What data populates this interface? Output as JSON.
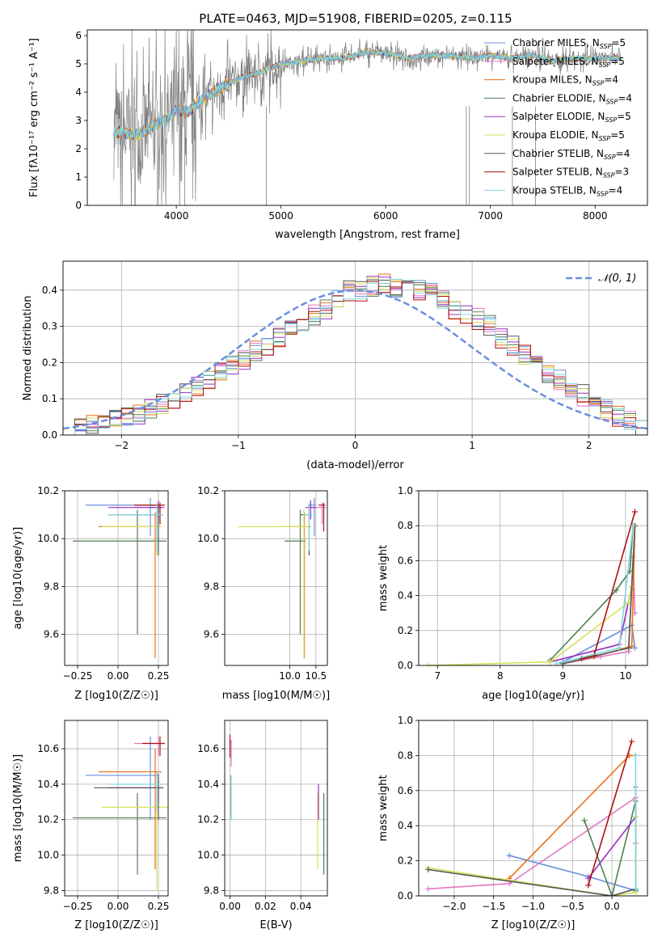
{
  "figure": {
    "title": "PLATE=0463, MJD=51908, FIBERID=0205, z=0.115",
    "colors": {
      "chabrier_miles": "#6a8fdc",
      "salpeter_miles": "#e377c2",
      "kroupa_miles": "#ee6e1a",
      "chabrier_elodie": "#4f7f4f",
      "salpeter_elodie": "#9b30c0",
      "kroupa_elodie": "#d6e05a",
      "chabrier_stelib": "#555555",
      "salpeter_stelib": "#b01010",
      "kroupa_stelib": "#7fd8de",
      "data": "#808080"
    }
  },
  "chart_data": [
    {
      "id": "spectrum",
      "type": "line",
      "xlabel": "wavelength [Angstrom, rest frame]",
      "ylabel": "Flux [fλ10⁻¹⁷ erg cm⁻² s⁻¹ A⁻¹]",
      "xlim": [
        3150,
        8500
      ],
      "ylim": [
        0,
        6.2
      ],
      "xticks": [
        "4000",
        "5000",
        "6000",
        "7000",
        "8000"
      ],
      "yticks": [
        "0",
        "1",
        "2",
        "3",
        "4",
        "5",
        "6"
      ],
      "legend": [
        {
          "label": "Chabrier MILES, N",
          "sub": "SSP",
          "suffix": "=5",
          "color": "chabrier_miles"
        },
        {
          "label": "Salpeter MILES, N",
          "sub": "SSP",
          "suffix": "=5",
          "color": "salpeter_miles"
        },
        {
          "label": "Kroupa MILES, N",
          "sub": "SSP",
          "suffix": "=4",
          "color": "kroupa_miles"
        },
        {
          "label": "Chabrier ELODIE, N",
          "sub": "SSP",
          "suffix": "=4",
          "color": "chabrier_elodie"
        },
        {
          "label": "Salpeter ELODIE, N",
          "sub": "SSP",
          "suffix": "=5",
          "color": "salpeter_elodie"
        },
        {
          "label": "Kroupa ELODIE, N",
          "sub": "SSP",
          "suffix": "=5",
          "color": "kroupa_elodie"
        },
        {
          "label": "Chabrier STELIB, N",
          "sub": "SSP",
          "suffix": "=4",
          "color": "chabrier_stelib"
        },
        {
          "label": "Salpeter STELIB, N",
          "sub": "SSP",
          "suffix": "=3",
          "color": "salpeter_stelib"
        },
        {
          "label": "Kroupa STELIB, N",
          "sub": "SSP",
          "suffix": "=4",
          "color": "kroupa_stelib"
        }
      ],
      "legend_loc": "upper right",
      "continuum": {
        "x": [
          3400,
          3600,
          3700,
          3800,
          3900,
          4000,
          4100,
          4200,
          4400,
          4600,
          4800,
          5000,
          5200,
          5400,
          5600,
          5800,
          6000,
          6200,
          6400,
          6600,
          6800,
          7000,
          7200,
          7400,
          7600,
          7800,
          8000,
          8250
        ],
        "y": [
          2.6,
          2.5,
          2.6,
          2.9,
          3.0,
          3.4,
          3.3,
          3.6,
          4.1,
          4.5,
          4.7,
          5.0,
          5.1,
          5.2,
          5.2,
          5.4,
          5.4,
          5.2,
          5.3,
          5.3,
          5.2,
          5.3,
          5.2,
          5.3,
          5.1,
          5.2,
          5.2,
          5.2
        ]
      }
    },
    {
      "id": "residuals",
      "type": "step",
      "xlabel": "(data-model)/error",
      "ylabel": "Normed distribution",
      "xlim": [
        -2.5,
        2.5
      ],
      "ylim": [
        0,
        0.48
      ],
      "xticks": [
        "-2",
        "-1",
        "0",
        "1",
        "2"
      ],
      "yticks": [
        "0.0",
        "0.1",
        "0.2",
        "0.3",
        "0.4"
      ],
      "grid": true,
      "legend": {
        "label": "𝒩(0, 1)",
        "loc": "upper right"
      },
      "bin_width": 0.1,
      "bin_start": -2.5,
      "profile": [
        0.02,
        0.024,
        0.03,
        0.035,
        0.045,
        0.055,
        0.06,
        0.07,
        0.085,
        0.1,
        0.115,
        0.13,
        0.15,
        0.17,
        0.19,
        0.21,
        0.23,
        0.25,
        0.27,
        0.3,
        0.31,
        0.33,
        0.35,
        0.37,
        0.4,
        0.4,
        0.41,
        0.42,
        0.41,
        0.4,
        0.4,
        0.39,
        0.37,
        0.35,
        0.33,
        0.32,
        0.3,
        0.27,
        0.25,
        0.22,
        0.19,
        0.17,
        0.15,
        0.13,
        0.11,
        0.09,
        0.07,
        0.05,
        0.035,
        0.025
      ]
    },
    {
      "id": "age_vs_Z",
      "type": "errorbar",
      "xlabel": "Z [log10(Z/Z☉)]",
      "ylabel": "age  [log10(age/yr)]",
      "xlim": [
        -0.33,
        0.31
      ],
      "ylim": [
        9.47,
        10.2
      ],
      "xticks": [
        "-0.25",
        "0.00",
        "0.25"
      ],
      "yticks": [
        "9.6",
        "9.8",
        "10.0",
        "10.2"
      ],
      "points": [
        {
          "s": "chabrier_miles",
          "x": 0.2,
          "y": 10.14,
          "xl": -0.2,
          "xh": 0.25,
          "yl": 10.01,
          "yh": 10.17
        },
        {
          "s": "salpeter_miles",
          "x": 0.25,
          "y": 10.13,
          "xl": 0.1,
          "xh": 0.29,
          "yl": 10.06,
          "yh": 10.15
        },
        {
          "s": "kroupa_miles",
          "x": 0.23,
          "y": 10.05,
          "xl": -0.12,
          "xh": 0.27,
          "yl": 9.5,
          "yh": 10.11
        },
        {
          "s": "chabrier_elodie",
          "x": 0.12,
          "y": 9.99,
          "xl": -0.28,
          "xh": 0.3,
          "yl": 9.6,
          "yh": 10.12
        },
        {
          "s": "salpeter_elodie",
          "x": 0.25,
          "y": 10.13,
          "xl": -0.06,
          "xh": 0.28,
          "yl": 10.08,
          "yh": 10.16
        },
        {
          "s": "kroupa_elodie",
          "x": 0.24,
          "y": 10.05,
          "xl": -0.1,
          "xh": 0.27,
          "yl": 9.93,
          "yh": 10.12
        },
        {
          "s": "chabrier_stelib",
          "x": 0.25,
          "y": 10.1,
          "xl": -0.06,
          "xh": 0.28,
          "yl": 9.93,
          "yh": 10.14
        },
        {
          "s": "salpeter_stelib",
          "x": 0.26,
          "y": 10.14,
          "xl": 0.1,
          "xh": 0.29,
          "yl": 10.06,
          "yh": 10.15
        },
        {
          "s": "kroupa_stelib",
          "x": 0.24,
          "y": 10.1,
          "xl": -0.06,
          "xh": 0.28,
          "yl": 9.95,
          "yh": 10.15
        }
      ]
    },
    {
      "id": "age_vs_mass",
      "type": "errorbar",
      "xlabel": "mass [log10(M/M☉)]",
      "ylabel": "",
      "xlim": [
        8.75,
        10.72
      ],
      "ylim": [
        9.47,
        10.2
      ],
      "xticks": [
        "10.0",
        "10.5"
      ],
      "yticks": [
        "9.6",
        "9.8",
        "10.0",
        "10.2"
      ],
      "points": [
        {
          "s": "chabrier_miles",
          "x": 10.47,
          "y": 10.14,
          "xl": 10.35,
          "xh": 10.5,
          "yl": 10.01,
          "yh": 10.17
        },
        {
          "s": "salpeter_miles",
          "x": 10.62,
          "y": 10.13,
          "xl": 10.45,
          "xh": 10.7,
          "yl": 10.06,
          "yh": 10.15
        },
        {
          "s": "kroupa_miles",
          "x": 10.28,
          "y": 10.05,
          "xl": 9.9,
          "xh": 10.4,
          "yl": 9.5,
          "yh": 10.11
        },
        {
          "s": "chabrier_elodie",
          "x": 10.2,
          "y": 9.99,
          "xl": 9.9,
          "xh": 10.3,
          "yl": 9.6,
          "yh": 10.12
        },
        {
          "s": "salpeter_elodie",
          "x": 10.4,
          "y": 10.13,
          "xl": 10.3,
          "xh": 10.5,
          "yl": 10.08,
          "yh": 10.16
        },
        {
          "s": "kroupa_elodie",
          "x": 10.27,
          "y": 10.05,
          "xl": 9.0,
          "xh": 10.35,
          "yl": 9.5,
          "yh": 10.12
        },
        {
          "s": "chabrier_stelib",
          "x": 10.37,
          "y": 10.1,
          "xl": 10.2,
          "xh": 10.42,
          "yl": 9.93,
          "yh": 10.14
        },
        {
          "s": "salpeter_stelib",
          "x": 10.65,
          "y": 10.14,
          "xl": 10.55,
          "xh": 10.68,
          "yl": 10.03,
          "yh": 10.15
        },
        {
          "s": "kroupa_stelib",
          "x": 10.37,
          "y": 10.1,
          "xl": 10.25,
          "xh": 10.42,
          "yl": 9.95,
          "yh": 10.15
        }
      ]
    },
    {
      "id": "weight_vs_age",
      "type": "line",
      "xlabel": "age  [log10(age/yr)]",
      "ylabel": "mass weight",
      "xlim": [
        6.7,
        10.35
      ],
      "ylim": [
        0,
        1.0
      ],
      "xticks": [
        "7",
        "8",
        "9",
        "10"
      ],
      "yticks": [
        "0.0",
        "0.2",
        "0.4",
        "0.6",
        "0.8",
        "1.0"
      ],
      "grid": true,
      "series": [
        {
          "s": "chabrier_miles",
          "x": [
            9.0,
            10.1,
            10.15
          ],
          "y": [
            0.02,
            0.23,
            0.1
          ]
        },
        {
          "s": "salpeter_miles",
          "x": [
            9.0,
            9.6,
            10.05,
            10.12,
            10.15
          ],
          "y": [
            0.01,
            0.05,
            0.08,
            0.62,
            0.3
          ]
        },
        {
          "s": "kroupa_miles",
          "x": [
            9.0,
            9.5,
            10.1,
            10.15
          ],
          "y": [
            0.01,
            0.05,
            0.11,
            0.8
          ]
        },
        {
          "s": "chabrier_elodie",
          "x": [
            8.8,
            9.85,
            10.07,
            10.12
          ],
          "y": [
            0.03,
            0.43,
            0.54,
            0.8
          ]
        },
        {
          "s": "salpeter_elodie",
          "x": [
            8.8,
            9.9,
            10.1
          ],
          "y": [
            0.02,
            0.12,
            0.45
          ]
        },
        {
          "s": "kroupa_elodie",
          "x": [
            6.85,
            8.8,
            10.05,
            10.1
          ],
          "y": [
            0.0,
            0.02,
            0.36,
            0.45
          ]
        },
        {
          "s": "chabrier_stelib",
          "x": [
            9.0,
            10.05,
            10.15
          ],
          "y": [
            0.01,
            0.1,
            0.8
          ]
        },
        {
          "s": "salpeter_stelib",
          "x": [
            9.3,
            9.5,
            10.15
          ],
          "y": [
            0.04,
            0.06,
            0.88
          ]
        },
        {
          "s": "kroupa_stelib",
          "x": [
            8.9,
            9.9,
            10.12
          ],
          "y": [
            0.01,
            0.1,
            0.8
          ]
        }
      ]
    },
    {
      "id": "mass_vs_Z",
      "type": "errorbar",
      "xlabel": "Z [log10(Z/Z☉)]",
      "ylabel": "mass [log10(M/M☉)]",
      "xlim": [
        -0.33,
        0.31
      ],
      "ylim": [
        9.77,
        10.76
      ],
      "xticks": [
        "-0.25",
        "0.00",
        "0.25"
      ],
      "yticks": [
        "9.8",
        "10.0",
        "10.2",
        "10.4",
        "10.6"
      ],
      "points": [
        {
          "s": "chabrier_miles",
          "x": 0.2,
          "y": 10.45,
          "xl": -0.2,
          "xh": 0.25,
          "yl": 10.2,
          "yh": 10.67
        },
        {
          "s": "salpeter_miles",
          "x": 0.25,
          "y": 10.63,
          "xl": 0.1,
          "xh": 0.29,
          "yl": 10.56,
          "yh": 10.67
        },
        {
          "s": "kroupa_miles",
          "x": 0.23,
          "y": 10.47,
          "xl": -0.12,
          "xh": 0.27,
          "yl": 9.92,
          "yh": 10.6
        },
        {
          "s": "chabrier_elodie",
          "x": 0.12,
          "y": 10.21,
          "xl": -0.28,
          "xh": 0.3,
          "yl": 9.89,
          "yh": 10.35
        },
        {
          "s": "salpeter_elodie",
          "x": 0.25,
          "y": 10.38,
          "xl": -0.06,
          "xh": 0.28,
          "yl": 10.3,
          "yh": 10.42
        },
        {
          "s": "kroupa_elodie",
          "x": 0.24,
          "y": 10.27,
          "xl": -0.1,
          "xh": 0.31,
          "yl": 9.8,
          "yh": 10.35
        },
        {
          "s": "chabrier_stelib",
          "x": 0.25,
          "y": 10.38,
          "xl": -0.15,
          "xh": 0.28,
          "yl": 10.2,
          "yh": 10.46
        },
        {
          "s": "salpeter_stelib",
          "x": 0.26,
          "y": 10.63,
          "xl": 0.15,
          "xh": 0.29,
          "yl": 10.56,
          "yh": 10.67
        },
        {
          "s": "kroupa_stelib",
          "x": 0.24,
          "y": 10.4,
          "xl": -0.06,
          "xh": 0.28,
          "yl": 10.25,
          "yh": 10.47
        }
      ]
    },
    {
      "id": "mass_vs_ebv",
      "type": "errorbar",
      "xlabel": "E(B-V)",
      "ylabel": "",
      "xlim": [
        -0.003,
        0.055
      ],
      "ylim": [
        9.77,
        10.76
      ],
      "xticks": [
        "0.00",
        "0.02",
        "0.04"
      ],
      "yticks": [
        "9.8",
        "10.0",
        "10.2",
        "10.4",
        "10.6"
      ],
      "vlines": [
        {
          "s": "salpeter_stelib",
          "x": 0.0,
          "yl": 10.55,
          "yh": 10.68
        },
        {
          "s": "chabrier_elodie",
          "x": 0.0005,
          "yl": 10.2,
          "yh": 10.45
        },
        {
          "s": "kroupa_stelib",
          "x": 0.0003,
          "yl": 10.2,
          "yh": 10.45
        },
        {
          "s": "salpeter_miles",
          "x": 0.0007,
          "yl": 10.5,
          "yh": 10.65
        },
        {
          "s": "kroupa_elodie",
          "x": 0.0495,
          "yl": 9.92,
          "yh": 10.35
        },
        {
          "s": "salpeter_elodie",
          "x": 0.05,
          "yl": 10.2,
          "yh": 10.4
        },
        {
          "s": "chabrier_elodie",
          "x": 0.053,
          "yl": 9.89,
          "yh": 10.35
        }
      ]
    },
    {
      "id": "weight_vs_Z",
      "type": "line",
      "xlabel": "Z [log10(Z/Z☉)]",
      "ylabel": "mass weight",
      "xlim": [
        -2.45,
        0.45
      ],
      "ylim": [
        0,
        1.0
      ],
      "xticks": [
        "-2.0",
        "-1.5",
        "-1.0",
        "-0.5",
        "0.0"
      ],
      "yticks": [
        "0.0",
        "0.2",
        "0.4",
        "0.6",
        "0.8",
        "1.0"
      ],
      "grid": true,
      "series": [
        {
          "s": "chabrier_miles",
          "x": [
            -1.3,
            -0.3,
            0.3,
            0.3
          ],
          "y": [
            0.23,
            0.11,
            0.03,
            0.62
          ]
        },
        {
          "s": "salpeter_miles",
          "x": [
            -2.33,
            -1.3,
            0.3,
            0.3
          ],
          "y": [
            0.04,
            0.07,
            0.56,
            0.3
          ]
        },
        {
          "s": "kroupa_miles",
          "x": [
            -1.3,
            0.22,
            0.3
          ],
          "y": [
            0.1,
            0.8,
            0.8
          ]
        },
        {
          "s": "chabrier_elodie",
          "x": [
            -0.35,
            0.0,
            0.3,
            0.3
          ],
          "y": [
            0.43,
            0.0,
            0.54,
            0.03
          ]
        },
        {
          "s": "salpeter_elodie",
          "x": [
            -0.3,
            0.3
          ],
          "y": [
            0.1,
            0.45
          ]
        },
        {
          "s": "kroupa_elodie",
          "x": [
            -2.33,
            0.0,
            0.3,
            0.3
          ],
          "y": [
            0.16,
            0.0,
            0.02,
            0.45
          ]
        },
        {
          "s": "chabrier_stelib",
          "x": [
            -2.33,
            0.0,
            0.3
          ],
          "y": [
            0.15,
            0.0,
            0.04
          ]
        },
        {
          "s": "salpeter_stelib",
          "x": [
            -0.3,
            0.25
          ],
          "y": [
            0.06,
            0.88
          ]
        },
        {
          "s": "kroupa_stelib",
          "x": [
            0.3,
            0.3
          ],
          "y": [
            0.04,
            0.8
          ]
        }
      ]
    }
  ]
}
